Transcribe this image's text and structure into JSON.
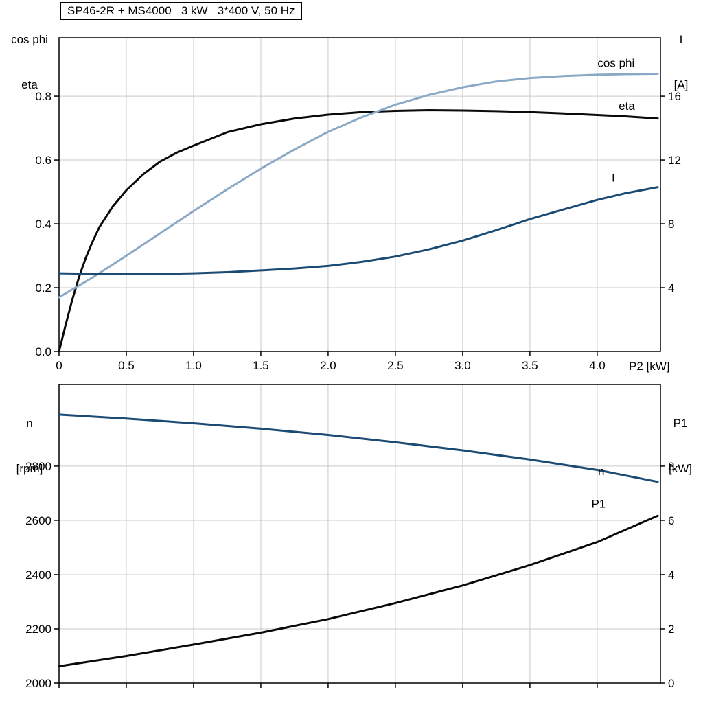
{
  "title": "SP46-2R + MS4000   3 kW   3*400 V, 50 Hz",
  "colors": {
    "black": "#0a0a0a",
    "light_blue": "#8aa9c6",
    "dark_blue": "#1b4a72",
    "grid": "#c9c9c9",
    "frame": "#000000",
    "background": "#ffffff"
  },
  "axis_labels": {
    "top_left": {
      "line1": "cos phi",
      "line2": "eta"
    },
    "top_right": {
      "line1": "I",
      "line2": "[A]"
    },
    "x_label": "P2 [kW]",
    "bottom_left": {
      "line1": "n",
      "line2": "[rpm]"
    },
    "bottom_right": {
      "line1": "P1",
      "line2": "[kW]"
    }
  },
  "chart_data": [
    {
      "type": "line",
      "title": "SP46-2R + MS4000   3 kW   3*400 V, 50 Hz",
      "xlabel": "P2 [kW]",
      "x_range": [
        0,
        4.47
      ],
      "x_ticks": [
        0,
        0.5,
        1,
        1.5,
        2,
        2.5,
        3,
        3.5,
        4
      ],
      "x_tick_labels": [
        "0",
        "0.5",
        "1.0",
        "1.5",
        "2.0",
        "2.5",
        "3.0",
        "3.5",
        "4.0"
      ],
      "grid": true,
      "left_axis": {
        "label": "cos phi / eta",
        "range": [
          0,
          0.983
        ],
        "ticks": [
          0,
          0.2,
          0.4,
          0.6,
          0.8
        ],
        "tick_labels": [
          "0.0",
          "0.2",
          "0.4",
          "0.6",
          "0.8"
        ]
      },
      "right_axis": {
        "label": "I [A]",
        "range": [
          0,
          19.66
        ],
        "ticks": [
          4,
          8,
          12,
          16
        ],
        "tick_labels": [
          "4",
          "8",
          "12",
          "16"
        ]
      },
      "series": [
        {
          "name": "eta",
          "axis": "left",
          "color_key": "black",
          "x": [
            0,
            0.05,
            0.1,
            0.15,
            0.2,
            0.25,
            0.3,
            0.4,
            0.5,
            0.625,
            0.75,
            0.875,
            1,
            1.25,
            1.5,
            1.75,
            2,
            2.25,
            2.5,
            2.75,
            3,
            3.25,
            3.5,
            3.75,
            4,
            4.2,
            4.45
          ],
          "y": [
            0,
            0.085,
            0.165,
            0.235,
            0.295,
            0.345,
            0.39,
            0.455,
            0.505,
            0.555,
            0.595,
            0.623,
            0.645,
            0.687,
            0.712,
            0.73,
            0.742,
            0.75,
            0.754,
            0.756,
            0.755,
            0.753,
            0.75,
            0.746,
            0.741,
            0.737,
            0.73
          ],
          "label": {
            "text": "eta",
            "x": 4.22,
            "y": 0.77
          }
        },
        {
          "name": "cos phi",
          "axis": "left",
          "color_key": "light_blue",
          "x": [
            0,
            0.25,
            0.5,
            0.75,
            1,
            1.25,
            1.5,
            1.75,
            2,
            2.25,
            2.5,
            2.75,
            3,
            3.25,
            3.5,
            3.75,
            4,
            4.2,
            4.45
          ],
          "y": [
            0.17,
            0.232,
            0.3,
            0.37,
            0.44,
            0.508,
            0.573,
            0.633,
            0.688,
            0.734,
            0.773,
            0.804,
            0.828,
            0.846,
            0.857,
            0.863,
            0.867,
            0.869,
            0.87
          ],
          "label": {
            "text": "cos phi",
            "x": 4.14,
            "y": 0.905
          }
        },
        {
          "name": "I",
          "axis": "right",
          "color_key": "dark_blue",
          "x": [
            0,
            0.25,
            0.5,
            0.75,
            1,
            1.25,
            1.5,
            1.75,
            2,
            2.25,
            2.5,
            2.75,
            3,
            3.25,
            3.5,
            3.75,
            4,
            4.2,
            4.45
          ],
          "y": [
            4.9,
            4.87,
            4.85,
            4.86,
            4.9,
            4.97,
            5.08,
            5.2,
            5.36,
            5.62,
            5.95,
            6.4,
            6.95,
            7.6,
            8.3,
            8.9,
            9.5,
            9.9,
            10.3
          ],
          "label": {
            "text": "I",
            "x": 4.12,
            "y": 10.9
          }
        }
      ]
    },
    {
      "type": "line",
      "title": "",
      "xlabel": "",
      "x_range": [
        0,
        4.47
      ],
      "x_ticks": [
        0,
        0.5,
        1,
        1.5,
        2,
        2.5,
        3,
        3.5,
        4
      ],
      "x_tick_labels": [],
      "grid": true,
      "left_axis": {
        "label": "n [rpm]",
        "range": [
          2000,
          3101
        ],
        "ticks": [
          2000,
          2200,
          2400,
          2600,
          2800
        ],
        "tick_labels": [
          "2000",
          "2200",
          "2400",
          "2600",
          "2800"
        ]
      },
      "right_axis": {
        "label": "P1 [kW]",
        "range": [
          0,
          11.01
        ],
        "ticks": [
          0,
          2,
          4,
          6,
          8
        ],
        "tick_labels": [
          "0",
          "2",
          "4",
          "6",
          "8"
        ]
      },
      "series": [
        {
          "name": "n",
          "axis": "left",
          "color_key": "dark_blue",
          "x": [
            0,
            0.5,
            1,
            1.5,
            2,
            2.5,
            3,
            3.5,
            4,
            4.45
          ],
          "y": [
            2990,
            2975,
            2958,
            2938,
            2915,
            2888,
            2858,
            2824,
            2786,
            2742
          ],
          "label": {
            "text": "n",
            "x": 4.03,
            "y": 2782
          }
        },
        {
          "name": "P1",
          "axis": "right",
          "color_key": "black",
          "x": [
            0,
            0.5,
            1,
            1.5,
            2,
            2.5,
            3,
            3.5,
            4,
            4.45
          ],
          "y": [
            0.62,
            1.0,
            1.42,
            1.86,
            2.36,
            2.95,
            3.6,
            4.35,
            5.2,
            6.17
          ],
          "label": {
            "text": "P1",
            "x": 4.01,
            "y": 6.62
          }
        }
      ]
    }
  ]
}
